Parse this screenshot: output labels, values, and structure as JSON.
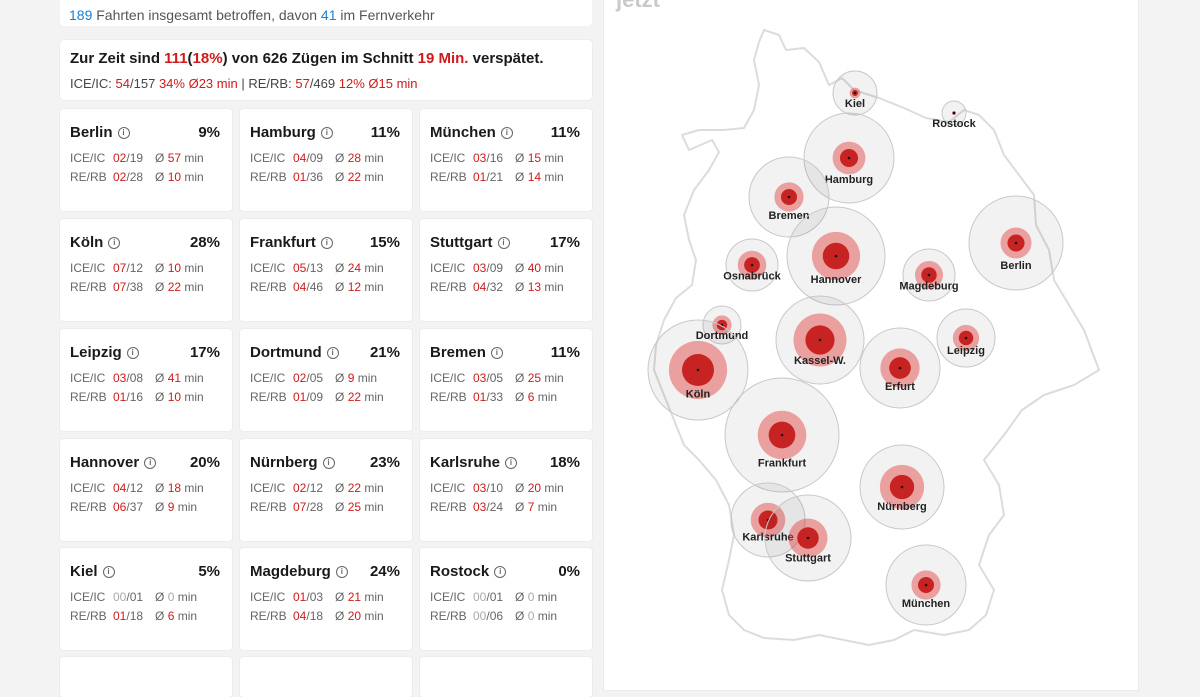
{
  "colors": {
    "accent_red": "#cf1b1b",
    "accent_blue": "#1a7fd1",
    "muted": "#aaaaaa"
  },
  "affected": {
    "count": "189",
    "text_a": "Fahrten insgesamt betroffen, davon",
    "fern_count": "41",
    "text_b": "im Fernverkehr"
  },
  "summary": {
    "p1": "Zur Zeit sind",
    "late": "111",
    "p2": "(",
    "pct": "18%",
    "p3": ") von 626 Zügen im Schnitt",
    "avg": "19 Min.",
    "p4": "verspätet.",
    "ice_label": "ICE/IC:",
    "ice_late": "54",
    "ice_total": "/157",
    "ice_pct": "34%",
    "ice_avg": "Ø23 min",
    "sep": "|",
    "re_label": "RE/RB:",
    "re_late": "57",
    "re_total": "/469",
    "re_pct": "12%",
    "re_avg": "Ø15 min"
  },
  "labels": {
    "ice": "ICE/IC",
    "re": "RE/RB",
    "avg_prefix": "Ø",
    "min_suffix": "min",
    "info_glyph": "i"
  },
  "cities": [
    {
      "name": "Berlin",
      "pct": "9%",
      "ice_late": "02",
      "ice_total": "19",
      "ice_avg": "57",
      "re_late": "02",
      "re_total": "28",
      "re_avg": "10"
    },
    {
      "name": "Hamburg",
      "pct": "11%",
      "ice_late": "04",
      "ice_total": "09",
      "ice_avg": "28",
      "re_late": "01",
      "re_total": "36",
      "re_avg": "22"
    },
    {
      "name": "München",
      "pct": "11%",
      "ice_late": "03",
      "ice_total": "16",
      "ice_avg": "15",
      "re_late": "01",
      "re_total": "21",
      "re_avg": "14"
    },
    {
      "name": "Köln",
      "pct": "28%",
      "ice_late": "07",
      "ice_total": "12",
      "ice_avg": "10",
      "re_late": "07",
      "re_total": "38",
      "re_avg": "22"
    },
    {
      "name": "Frankfurt",
      "pct": "15%",
      "ice_late": "05",
      "ice_total": "13",
      "ice_avg": "24",
      "re_late": "04",
      "re_total": "46",
      "re_avg": "12"
    },
    {
      "name": "Stuttgart",
      "pct": "17%",
      "ice_late": "03",
      "ice_total": "09",
      "ice_avg": "40",
      "re_late": "04",
      "re_total": "32",
      "re_avg": "13"
    },
    {
      "name": "Leipzig",
      "pct": "17%",
      "ice_late": "03",
      "ice_total": "08",
      "ice_avg": "41",
      "re_late": "01",
      "re_total": "16",
      "re_avg": "10"
    },
    {
      "name": "Dortmund",
      "pct": "21%",
      "ice_late": "02",
      "ice_total": "05",
      "ice_avg": "9",
      "re_late": "01",
      "re_total": "09",
      "re_avg": "22"
    },
    {
      "name": "Bremen",
      "pct": "11%",
      "ice_late": "03",
      "ice_total": "05",
      "ice_avg": "25",
      "re_late": "01",
      "re_total": "33",
      "re_avg": "6"
    },
    {
      "name": "Hannover",
      "pct": "20%",
      "ice_late": "04",
      "ice_total": "12",
      "ice_avg": "18",
      "re_late": "06",
      "re_total": "37",
      "re_avg": "9"
    },
    {
      "name": "Nürnberg",
      "pct": "23%",
      "ice_late": "02",
      "ice_total": "12",
      "ice_avg": "22",
      "re_late": "07",
      "re_total": "28",
      "re_avg": "25"
    },
    {
      "name": "Karlsruhe",
      "pct": "18%",
      "ice_late": "03",
      "ice_total": "10",
      "ice_avg": "20",
      "re_late": "03",
      "re_total": "24",
      "re_avg": "7"
    },
    {
      "name": "Kiel",
      "pct": "5%",
      "ice_late": "00",
      "ice_total": "01",
      "ice_avg": "0",
      "re_late": "01",
      "re_total": "18",
      "re_avg": "6"
    },
    {
      "name": "Magdeburg",
      "pct": "24%",
      "ice_late": "01",
      "ice_total": "03",
      "ice_avg": "21",
      "re_late": "04",
      "re_total": "18",
      "re_avg": "20"
    },
    {
      "name": "Rostock",
      "pct": "0%",
      "ice_late": "00",
      "ice_total": "01",
      "ice_avg": "0",
      "re_late": "00",
      "re_total": "06",
      "re_avg": "0"
    }
  ],
  "map": {
    "title": "jetzt",
    "cities": [
      {
        "name": "Kiel",
        "total": 19,
        "late_pct": 5
      },
      {
        "name": "Rostock",
        "total": 7,
        "late_pct": 0
      },
      {
        "name": "Hamburg",
        "total": 45,
        "late_pct": 11
      },
      {
        "name": "Bremen",
        "total": 38,
        "late_pct": 11
      },
      {
        "name": "Berlin",
        "total": 47,
        "late_pct": 9
      },
      {
        "name": "Osnabrück",
        "total": 18,
        "late_pct": 25
      },
      {
        "name": "Hannover",
        "total": 49,
        "late_pct": 20
      },
      {
        "name": "Magdeburg",
        "total": 21,
        "late_pct": 24
      },
      {
        "name": "Dortmund",
        "total": 14,
        "late_pct": 21
      },
      {
        "name": "Kassel-W.",
        "total": 40,
        "late_pct": 30
      },
      {
        "name": "Leipzig",
        "total": 24,
        "late_pct": 17
      },
      {
        "name": "Köln",
        "total": 50,
        "late_pct": 28
      },
      {
        "name": "Erfurt",
        "total": 32,
        "late_pct": 20
      },
      {
        "name": "Frankfurt",
        "total": 59,
        "late_pct": 15
      },
      {
        "name": "Nürnberg",
        "total": 40,
        "late_pct": 23
      },
      {
        "name": "Karlsruhe",
        "total": 34,
        "late_pct": 18
      },
      {
        "name": "Stuttgart",
        "total": 41,
        "late_pct": 17
      },
      {
        "name": "München",
        "total": 37,
        "late_pct": 11
      }
    ]
  }
}
